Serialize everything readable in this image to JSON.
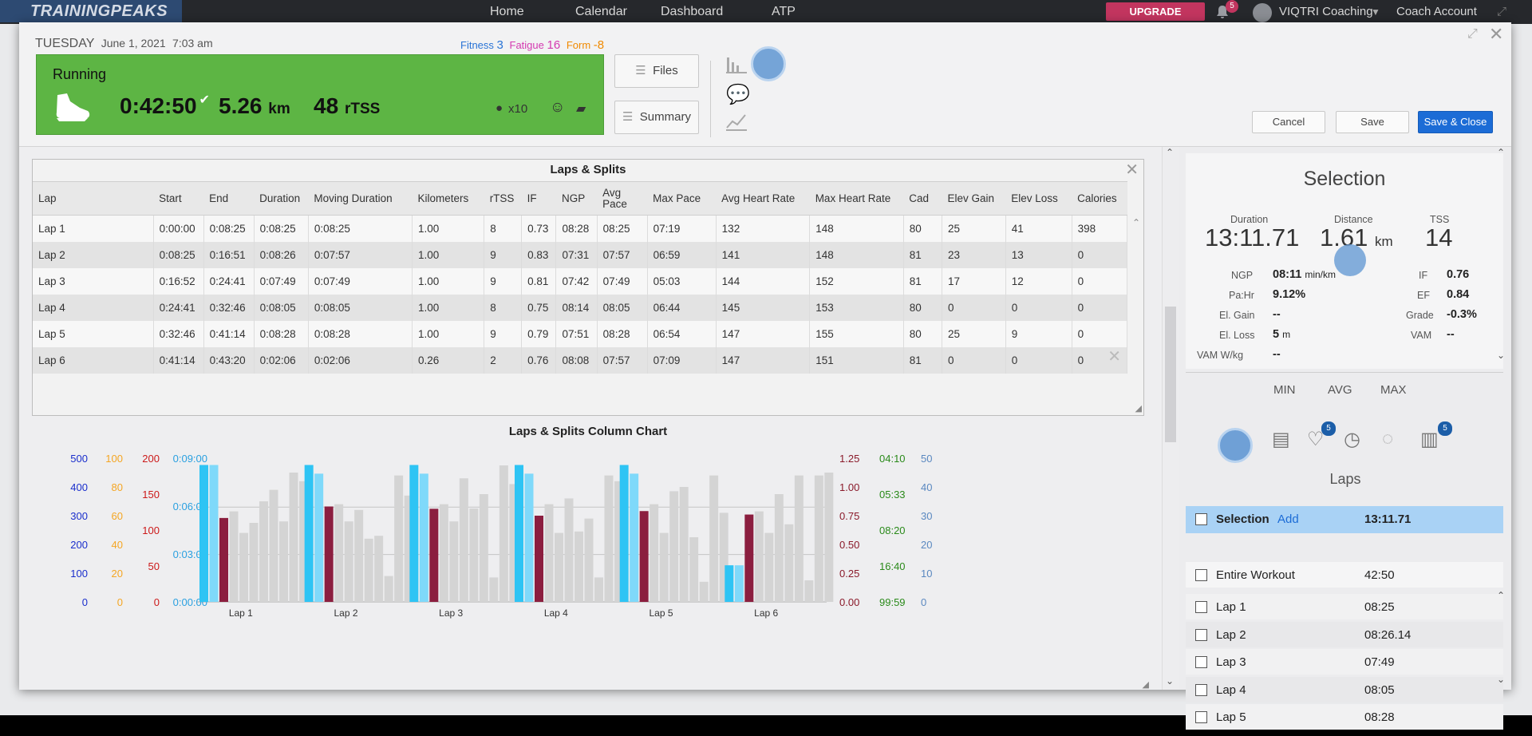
{
  "nav": {
    "logo": "TRAININGPEAKS",
    "home": "Home",
    "calendar": "Calendar",
    "dashboard": "Dashboard",
    "atp": "ATP",
    "upgrade": "UPGRADE",
    "notif_count": "5",
    "account": "VIQTRI Coaching",
    "coach": "Coach Account"
  },
  "header": {
    "day": "TUESDAY",
    "date": "June 1, 2021",
    "time": "7:03 am",
    "fitness_label": "Fitness",
    "fitness": "3",
    "fatigue_label": "Fatigue",
    "fatigue": "16",
    "form_label": "Form",
    "form": "-8",
    "sport": "Running",
    "duration": "0:42:50",
    "distance": "5.26",
    "dist_unit": "km",
    "tss": "48",
    "tss_unit": "rTSS",
    "kudos": "x10",
    "files": "Files",
    "summary": "Summary",
    "cancel": "Cancel",
    "save": "Save",
    "save_close": "Save & Close"
  },
  "laps": {
    "title": "Laps & Splits",
    "columns": [
      "Lap",
      "Start",
      "End",
      "Duration",
      "Moving Duration",
      "Kilometers",
      "rTSS",
      "IF",
      "NGP",
      "Avg Pace",
      "Max Pace",
      "Avg Heart Rate",
      "Max Heart Rate",
      "Cad",
      "Elev Gain",
      "Elev Loss",
      "Calories"
    ],
    "rows": [
      [
        "Lap 1",
        "0:00:00",
        "0:08:25",
        "0:08:25",
        "0:08:25",
        "1.00",
        "8",
        "0.73",
        "08:28",
        "08:25",
        "07:19",
        "132",
        "148",
        "80",
        "25",
        "41",
        "398"
      ],
      [
        "Lap 2",
        "0:08:25",
        "0:16:51",
        "0:08:26",
        "0:07:57",
        "1.00",
        "9",
        "0.83",
        "07:31",
        "07:57",
        "06:59",
        "141",
        "148",
        "81",
        "23",
        "13",
        "0"
      ],
      [
        "Lap 3",
        "0:16:52",
        "0:24:41",
        "0:07:49",
        "0:07:49",
        "1.00",
        "9",
        "0.81",
        "07:42",
        "07:49",
        "05:03",
        "144",
        "152",
        "81",
        "17",
        "12",
        "0"
      ],
      [
        "Lap 4",
        "0:24:41",
        "0:32:46",
        "0:08:05",
        "0:08:05",
        "1.00",
        "8",
        "0.75",
        "08:14",
        "08:05",
        "06:44",
        "145",
        "153",
        "80",
        "0",
        "0",
        "0"
      ],
      [
        "Lap 5",
        "0:32:46",
        "0:41:14",
        "0:08:28",
        "0:08:28",
        "1.00",
        "9",
        "0.79",
        "07:51",
        "08:28",
        "06:54",
        "147",
        "155",
        "80",
        "25",
        "9",
        "0"
      ],
      [
        "Lap 6",
        "0:41:14",
        "0:43:20",
        "0:02:06",
        "0:02:06",
        "0.26",
        "2",
        "0.76",
        "08:08",
        "07:57",
        "07:09",
        "147",
        "151",
        "81",
        "0",
        "0",
        "0"
      ]
    ]
  },
  "chart_data": {
    "type": "bar",
    "title": "Laps & Splits Column Chart",
    "categories": [
      "Lap 1",
      "Lap 2",
      "Lap 3",
      "Lap 4",
      "Lap 5",
      "Lap 6"
    ],
    "left_axes": [
      {
        "ticks": [
          "500",
          "400",
          "300",
          "200",
          "100",
          "0"
        ],
        "color": "#1a2ecc"
      },
      {
        "ticks": [
          "100",
          "80",
          "60",
          "40",
          "20",
          "0"
        ],
        "color": "#f5a623"
      },
      {
        "ticks": [
          "200",
          "150",
          "100",
          "50",
          "0"
        ],
        "color": "#cc1a1a"
      },
      {
        "ticks": [
          "0:09:00",
          "0:06:00",
          "0:03:00",
          "0:00:00"
        ],
        "color": "#2aa0e0"
      }
    ],
    "right_axes": [
      {
        "ticks": [
          "1.25",
          "1.00",
          "0.75",
          "0.50",
          "0.25",
          "0.00"
        ],
        "color": "#8a1a2a"
      },
      {
        "ticks": [
          "04:10",
          "05:33",
          "08:20",
          "16:40",
          "99:59"
        ],
        "color": "#2a8a1a"
      },
      {
        "ticks": [
          "50",
          "40",
          "30",
          "20",
          "10",
          "0"
        ],
        "color": "#5a88c0"
      }
    ],
    "series": [
      {
        "values": [
          505,
          505,
          505,
          505,
          505,
          135
        ],
        "max": 530,
        "color": "#2ec4f4"
      },
      {
        "values": [
          505,
          473,
          473,
          473,
          473,
          135
        ],
        "max": 530,
        "color": "#7fd9fa"
      },
      {
        "values": [
          0.73,
          0.83,
          0.81,
          0.75,
          0.79,
          0.76
        ],
        "max": 1.25,
        "color": "#8b1e3f"
      },
      {
        "values": [
          0.63,
          0.68,
          0.68,
          0.68,
          0.68,
          0.63
        ],
        "max": 1,
        "color": "#d4d4d4"
      },
      {
        "values": [
          0.48,
          0.56,
          0.56,
          0.48,
          0.48,
          0.48
        ],
        "max": 1,
        "color": "#d4d4d4"
      },
      {
        "values": [
          0.55,
          0.64,
          0.86,
          0.72,
          0.77,
          0.75
        ],
        "max": 1,
        "color": "#d4d4d4"
      },
      {
        "values": [
          0.7,
          0.44,
          0.65,
          0.49,
          0.8,
          0.54
        ],
        "max": 1,
        "color": "#d4d4d4"
      },
      {
        "values": [
          0.78,
          0.46,
          0.75,
          0.58,
          0.45,
          0.88
        ],
        "max": 1,
        "color": "#d4d4d4"
      },
      {
        "values": [
          0.56,
          0.18,
          0.17,
          0.17,
          0.14,
          0.15
        ],
        "max": 1,
        "color": "#d4d4d4"
      },
      {
        "values": [
          0.9,
          0.88,
          0.95,
          0.88,
          0.88,
          0.88
        ],
        "max": 1,
        "color": "#d4d4d4"
      },
      {
        "values": [
          0.84,
          0.74,
          0.82,
          0.84,
          0.62,
          0.9
        ],
        "max": 1,
        "color": "#d4d4d4"
      }
    ]
  },
  "selection": {
    "title": "Selection",
    "duration_label": "Duration",
    "duration": "13:11.71",
    "distance_label": "Distance",
    "distance": "1.61",
    "distance_unit": "km",
    "tss_label": "TSS",
    "tss": "14",
    "ngp_label": "NGP",
    "ngp": "08:11",
    "ngp_unit": "min/km",
    "if_label": "IF",
    "if": "0.76",
    "pahr_label": "Pa:Hr",
    "pahr": "9.12%",
    "ef_label": "EF",
    "ef": "0.84",
    "elgain_label": "El. Gain",
    "elgain": "--",
    "grade_label": "Grade",
    "grade": "-0.3%",
    "elloss_label": "El. Loss",
    "elloss": "5",
    "elloss_unit": "m",
    "vam_label": "VAM",
    "vam": "--",
    "vamwkg_label": "VAM W/kg",
    "vamwkg": "--",
    "min": "MIN",
    "avg": "AVG",
    "max": "MAX",
    "heart_badge": "5",
    "split_badge": "5",
    "laps_title": "Laps",
    "sel_row_label": "Selection",
    "sel_row_add": "Add",
    "sel_row_value": "13:11.71",
    "entire_label": "Entire Workout",
    "entire_value": "42:50",
    "lap_rows": [
      {
        "label": "Lap 1",
        "value": "08:25"
      },
      {
        "label": "Lap 2",
        "value": "08:26.14"
      },
      {
        "label": "Lap 3",
        "value": "07:49"
      },
      {
        "label": "Lap 4",
        "value": "08:05"
      },
      {
        "label": "Lap 5",
        "value": "08:28"
      }
    ]
  }
}
